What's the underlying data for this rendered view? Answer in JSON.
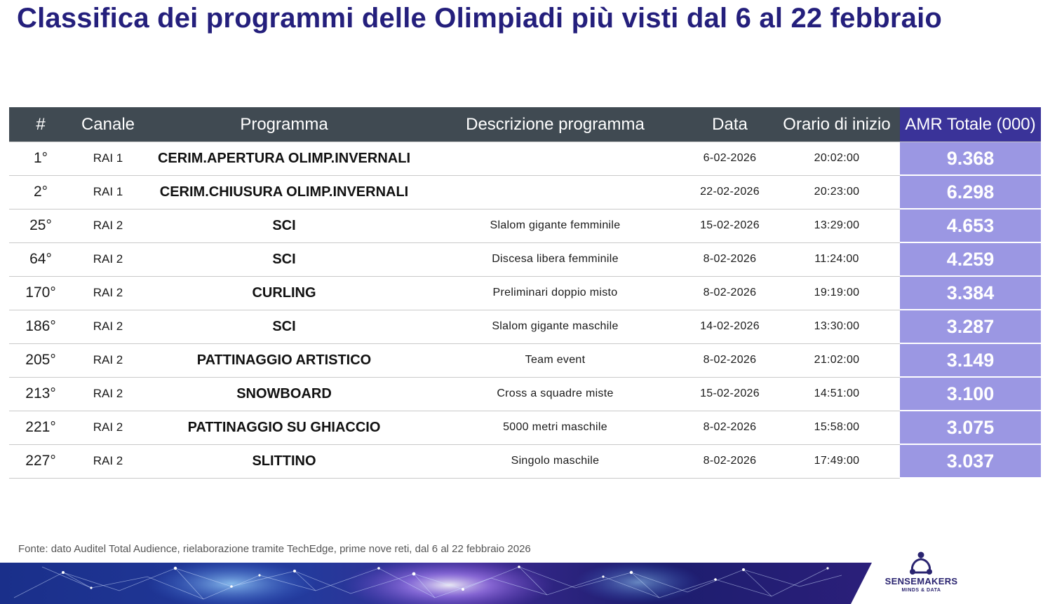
{
  "title": "Classifica dei programmi delle Olimpiadi più visti dal 6 al 22 febbraio",
  "table": {
    "headers": {
      "rank": "#",
      "channel": "Canale",
      "program": "Programma",
      "description": "Descrizione programma",
      "date": "Data",
      "start_time": "Orario di inizio",
      "amr": "AMR Totale (000)"
    },
    "rows": [
      {
        "rank": "1°",
        "channel": "RAI 1",
        "program": "CERIM.APERTURA OLIMP.INVERNALI",
        "description": "",
        "date": "6-02-2026",
        "start_time": "20:02:00",
        "amr": "9.368"
      },
      {
        "rank": "2°",
        "channel": "RAI 1",
        "program": "CERIM.CHIUSURA OLIMP.INVERNALI",
        "description": "",
        "date": "22-02-2026",
        "start_time": "20:23:00",
        "amr": "6.298"
      },
      {
        "rank": "25°",
        "channel": "RAI 2",
        "program": "SCI",
        "description": "Slalom gigante femminile",
        "date": "15-02-2026",
        "start_time": "13:29:00",
        "amr": "4.653"
      },
      {
        "rank": "64°",
        "channel": "RAI 2",
        "program": "SCI",
        "description": "Discesa libera femminile",
        "date": "8-02-2026",
        "start_time": "11:24:00",
        "amr": "4.259"
      },
      {
        "rank": "170°",
        "channel": "RAI 2",
        "program": "CURLING",
        "description": "Preliminari doppio misto",
        "date": "8-02-2026",
        "start_time": "19:19:00",
        "amr": "3.384"
      },
      {
        "rank": "186°",
        "channel": "RAI 2",
        "program": "SCI",
        "description": "Slalom gigante maschile",
        "date": "14-02-2026",
        "start_time": "13:30:00",
        "amr": "3.287"
      },
      {
        "rank": "205°",
        "channel": "RAI 2",
        "program": "PATTINAGGIO ARTISTICO",
        "description": "Team event",
        "date": "8-02-2026",
        "start_time": "21:02:00",
        "amr": "3.149"
      },
      {
        "rank": "213°",
        "channel": "RAI 2",
        "program": "SNOWBOARD",
        "description": "Cross a squadre miste",
        "date": "15-02-2026",
        "start_time": "14:51:00",
        "amr": "3.100"
      },
      {
        "rank": "221°",
        "channel": "RAI 2",
        "program": "PATTINAGGIO SU GHIACCIO",
        "description": "5000 metri maschile",
        "date": "8-02-2026",
        "start_time": "15:58:00",
        "amr": "3.075"
      },
      {
        "rank": "227°",
        "channel": "RAI 2",
        "program": "SLITTINO",
        "description": "Singolo maschile",
        "date": "8-02-2026",
        "start_time": "17:49:00",
        "amr": "3.037"
      }
    ]
  },
  "source_note": "Fonte: dato Auditel Total Audience, rielaborazione tramite TechEdge, prime nove reti, dal 6 al 22 febbraio 2026",
  "logo": {
    "name": "SENSEMAKERS",
    "tagline": "MINDS & DATA"
  },
  "colors": {
    "title": "#241f7c",
    "header_bg": "#404a52",
    "amr_header_bg": "#3a3399",
    "amr_cell_bg": "#9b97e3"
  }
}
